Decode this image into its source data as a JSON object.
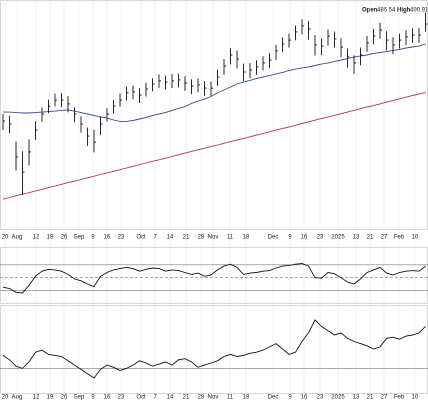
{
  "chart_data": [
    {
      "type": "ohlc",
      "header": [
        {
          "label": "Open",
          "value": 486.54
        },
        {
          "label": "High",
          "value": 490.91
        }
      ],
      "xtick_labels": [
        "20",
        "Aug",
        "12",
        "19",
        "26",
        "Sep",
        "9",
        "16",
        "23",
        "Oct",
        "7",
        "14",
        "21",
        "28",
        "Nov",
        "11",
        "18",
        "Dec",
        "9",
        "16",
        "23",
        "2025",
        "13",
        "21",
        "27",
        "Feb",
        "10"
      ],
      "ylim": [
        400,
        495
      ],
      "bar_color": "#111111",
      "high": [
        447.5,
        446.8,
        436,
        432,
        437,
        444.5,
        450.2,
        453.5,
        456,
        456.2,
        455,
        450.3,
        446.5,
        441.9,
        441,
        446.5,
        450,
        453.4,
        456,
        459,
        459.3,
        458.3,
        460.5,
        462.4,
        464,
        463.5,
        464.1,
        464.3,
        463.2,
        462,
        462.3,
        461.2,
        461,
        466,
        470.4,
        475,
        474,
        468.5,
        468.7,
        469.9,
        471.5,
        472.8,
        476.3,
        479.4,
        481,
        484.3,
        487,
        486.2,
        480.4,
        479,
        482.7,
        481.8,
        479,
        474.8,
        472,
        475.2,
        480,
        483,
        485.5,
        482,
        479.5,
        481,
        482.4,
        483.2,
        483.4,
        489.7
      ],
      "low": [
        440.8,
        439.5,
        424,
        413.7,
        426,
        436.7,
        444.2,
        447.8,
        450.6,
        450.3,
        448.2,
        444,
        439.8,
        434.2,
        431.5,
        438.7,
        444.3,
        447.6,
        450.5,
        453.2,
        453.7,
        452.1,
        454.8,
        457,
        458.4,
        457.7,
        458.3,
        458.6,
        457.2,
        455.8,
        456.5,
        455,
        455.1,
        459.2,
        463.8,
        468.2,
        466.5,
        461.3,
        462.4,
        463.8,
        465.7,
        466.7,
        470,
        473.4,
        475.2,
        478.2,
        480.7,
        478.5,
        471.8,
        472,
        476,
        475.1,
        471.2,
        466.8,
        464.2,
        467.8,
        473.4,
        476.5,
        478.8,
        474,
        472.4,
        474.8,
        476.2,
        477.1,
        477.2,
        481.8
      ],
      "close": [
        444.6,
        443.3,
        429.6,
        423.3,
        431.7,
        440.8,
        447.5,
        450.8,
        453.3,
        453.3,
        451.7,
        447.5,
        443.3,
        438.3,
        435.8,
        443.3,
        447.5,
        450.8,
        453.3,
        456.3,
        456.7,
        455.4,
        457.9,
        460,
        461.3,
        460.8,
        461.3,
        461.7,
        460.4,
        459.2,
        459.6,
        458.3,
        458.3,
        462.9,
        467.5,
        472.1,
        470.4,
        465,
        465.8,
        467.1,
        468.8,
        470,
        473.8,
        476.7,
        478.3,
        481.7,
        484.2,
        482.9,
        476.3,
        475.8,
        480,
        478.8,
        475.4,
        471.3,
        468.8,
        472.1,
        477.1,
        480,
        482.5,
        478.3,
        476.3,
        478.3,
        479.6,
        480.4,
        480.4,
        485
      ],
      "series": [
        {
          "color": "#3b4a8c",
          "values": [
            448.3,
            448.3,
            448.1,
            447.9,
            447.9,
            448.1,
            448.3,
            448.5,
            448.7,
            449,
            449.2,
            448.7,
            448.1,
            447.5,
            446.9,
            446.2,
            445.8,
            445,
            444.4,
            444.4,
            444.8,
            445.4,
            446,
            446.9,
            447.5,
            448.1,
            449,
            449.8,
            450.6,
            451.9,
            452.9,
            453.7,
            454.8,
            456.3,
            457.5,
            458.7,
            460,
            460.8,
            461.5,
            462.3,
            462.9,
            463.5,
            464.2,
            464.8,
            465.6,
            466.2,
            466.7,
            467.1,
            467.7,
            468.3,
            468.8,
            469.4,
            470,
            470.6,
            471.2,
            471.7,
            472.1,
            472.7,
            473.1,
            473.5,
            474,
            474.4,
            475,
            475.4,
            475.8,
            476.7
          ]
        },
        {
          "color": "#b3384a",
          "values": [
            412.0,
            412.7,
            413.4,
            414.1,
            414.7,
            415.4,
            416.1,
            416.8,
            417.5,
            418.2,
            418.9,
            419.5,
            420.2,
            420.9,
            421.6,
            422.3,
            423,
            423.6,
            424.3,
            425,
            425.7,
            426.4,
            427.1,
            427.8,
            428.4,
            429.1,
            429.8,
            430.5,
            431.2,
            431.9,
            432.6,
            433.2,
            433.9,
            434.6,
            435.3,
            436,
            436.7,
            437.3,
            438,
            438.7,
            439.4,
            440.1,
            440.8,
            441.5,
            442.1,
            442.8,
            443.5,
            444.2,
            444.9,
            445.6,
            446.3,
            446.9,
            447.6,
            448.3,
            449,
            449.7,
            450.4,
            451,
            451.7,
            452.4,
            453.1,
            453.8,
            454.5,
            455.2,
            455.8,
            456.5
          ]
        }
      ]
    },
    {
      "type": "line",
      "ylim": [
        15,
        90
      ],
      "hlines": [
        70,
        50,
        30
      ],
      "color": "#111111",
      "values": [
        35,
        33,
        27,
        26,
        38,
        52,
        60,
        63,
        62,
        60,
        55,
        48,
        45,
        40,
        36,
        52,
        58,
        62,
        64,
        66,
        64,
        60,
        63,
        65,
        64,
        60,
        62,
        61,
        58,
        55,
        57,
        52,
        54,
        62,
        68,
        71,
        66,
        55,
        57,
        58,
        60,
        61,
        65,
        68,
        69,
        71,
        72,
        68,
        50,
        49,
        58,
        56,
        50,
        43,
        40,
        48,
        58,
        62,
        66,
        57,
        54,
        58,
        60,
        61,
        60,
        68
      ]
    },
    {
      "type": "line",
      "ylim": [
        5,
        85
      ],
      "hlines": [
        27
      ],
      "color": "#111111",
      "values": [
        39,
        35,
        29,
        27,
        33,
        42,
        44,
        40,
        39,
        38,
        34,
        30,
        26,
        22,
        18,
        26,
        30,
        28,
        25,
        27,
        30,
        34,
        32,
        29,
        31,
        33,
        30,
        35,
        36,
        33,
        28,
        30,
        32,
        34,
        38,
        40,
        38,
        39,
        41,
        42,
        44,
        47,
        50,
        45,
        40,
        42,
        52,
        60,
        72,
        66,
        62,
        58,
        60,
        55,
        52,
        50,
        48,
        45,
        47,
        55,
        56,
        54,
        57,
        58,
        60,
        66
      ]
    }
  ]
}
